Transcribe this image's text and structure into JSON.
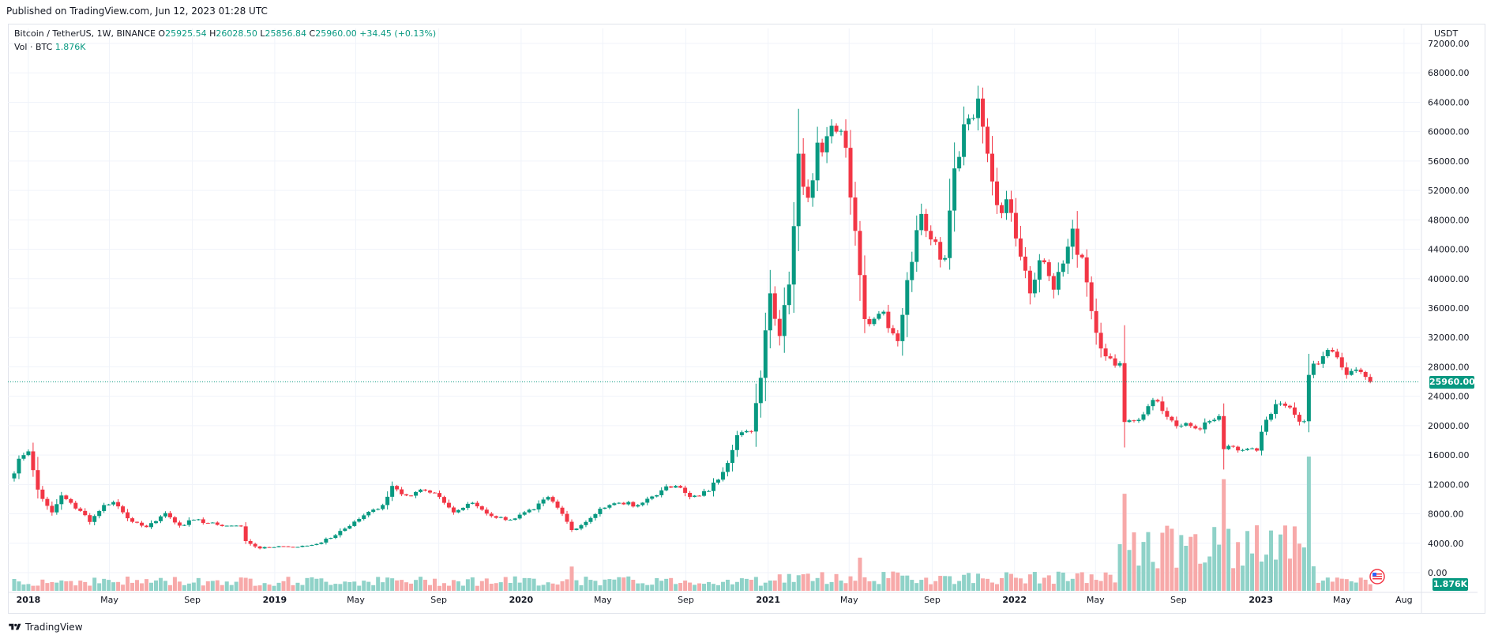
{
  "header": {
    "published": "Published on TradingView.com, Jun 12, 2023 01:28 UTC"
  },
  "legend": {
    "symbol": "Bitcoin / TetherUS, 1W, BINANCE",
    "open_label": "O",
    "open": "25925.54",
    "high_label": "H",
    "high": "26028.50",
    "low_label": "L",
    "low": "25856.84",
    "close_label": "C",
    "close": "25960.00",
    "change": "+34.45 (+0.13%)",
    "vol_label": "Vol · BTC",
    "vol_value": "1.876K"
  },
  "price_tag": "25960.00",
  "vol_tag": "1.876K",
  "footer": {
    "brand": "TradingView"
  },
  "colors": {
    "up": "#089981",
    "down": "#f23645",
    "vol_up": "#8fd2c8",
    "vol_down": "#f7a9a9",
    "grid": "#f0f3fa",
    "axis_text": "#131722"
  },
  "chart_data": {
    "type": "candlestick",
    "title": "Bitcoin / TetherUS, 1W, BINANCE",
    "ylabel": "USDT",
    "ylim": [
      0,
      72000
    ],
    "yticks": [
      "0.00",
      "4000.00",
      "8000.00",
      "12000.00",
      "16000.00",
      "20000.00",
      "24000.00",
      "28000.00",
      "32000.00",
      "36000.00",
      "40000.00",
      "44000.00",
      "48000.00",
      "52000.00",
      "56000.00",
      "60000.00",
      "64000.00",
      "68000.00",
      "72000.00"
    ],
    "x_labels": [
      "2018",
      "May",
      "Sep",
      "2019",
      "May",
      "Sep",
      "2020",
      "May",
      "Sep",
      "2021",
      "May",
      "Sep",
      "2022",
      "May",
      "Sep",
      "2023",
      "May",
      "Aug"
    ],
    "grid": true,
    "current_price": 25960,
    "close_anchors": [
      [
        "2017-12-11",
        13500
      ],
      [
        "2017-12-18",
        15500
      ],
      [
        "2018-01-01",
        16500
      ],
      [
        "2018-01-15",
        11300
      ],
      [
        "2018-02-05",
        8200
      ],
      [
        "2018-02-19",
        10500
      ],
      [
        "2018-03-05",
        9500
      ],
      [
        "2018-03-19",
        8400
      ],
      [
        "2018-04-02",
        6900
      ],
      [
        "2018-04-23",
        9200
      ],
      [
        "2018-05-07",
        9600
      ],
      [
        "2018-05-28",
        7400
      ],
      [
        "2018-06-25",
        6200
      ],
      [
        "2018-07-23",
        8100
      ],
      [
        "2018-08-13",
        6400
      ],
      [
        "2018-09-03",
        7200
      ],
      [
        "2018-10-08",
        6500
      ],
      [
        "2018-11-12",
        6300
      ],
      [
        "2018-11-19",
        4300
      ],
      [
        "2018-12-10",
        3300
      ],
      [
        "2019-01-07",
        3600
      ],
      [
        "2019-02-04",
        3500
      ],
      [
        "2019-03-04",
        3900
      ],
      [
        "2019-04-01",
        5100
      ],
      [
        "2019-05-13",
        7800
      ],
      [
        "2019-06-10",
        9200
      ],
      [
        "2019-06-24",
        11800
      ],
      [
        "2019-07-15",
        10500
      ],
      [
        "2019-08-05",
        11300
      ],
      [
        "2019-09-02",
        10300
      ],
      [
        "2019-09-23",
        8200
      ],
      [
        "2019-10-21",
        9500
      ],
      [
        "2019-11-18",
        7700
      ],
      [
        "2019-12-16",
        7200
      ],
      [
        "2020-01-20",
        8600
      ],
      [
        "2020-02-10",
        10300
      ],
      [
        "2020-03-02",
        8000
      ],
      [
        "2020-03-16",
        5800
      ],
      [
        "2020-04-06",
        6900
      ],
      [
        "2020-04-27",
        8700
      ],
      [
        "2020-05-25",
        9500
      ],
      [
        "2020-06-22",
        9200
      ],
      [
        "2020-07-27",
        11200
      ],
      [
        "2020-08-17",
        11800
      ],
      [
        "2020-09-07",
        10300
      ],
      [
        "2020-10-05",
        11100
      ],
      [
        "2020-10-26",
        13700
      ],
      [
        "2020-11-16",
        18700
      ],
      [
        "2020-12-07",
        19200
      ],
      [
        "2020-12-21",
        26500
      ],
      [
        "2021-01-04",
        38000
      ],
      [
        "2021-01-18",
        32200
      ],
      [
        "2021-02-01",
        39200
      ],
      [
        "2021-02-15",
        57000
      ],
      [
        "2021-03-01",
        51000
      ],
      [
        "2021-03-15",
        58500
      ],
      [
        "2021-04-12",
        60000
      ],
      [
        "2021-04-26",
        57800
      ],
      [
        "2021-05-10",
        46500
      ],
      [
        "2021-05-24",
        34500
      ],
      [
        "2021-06-21",
        35500
      ],
      [
        "2021-07-12",
        31500
      ],
      [
        "2021-07-26",
        39800
      ],
      [
        "2021-08-16",
        48800
      ],
      [
        "2021-09-06",
        45000
      ],
      [
        "2021-09-20",
        42800
      ],
      [
        "2021-10-04",
        55000
      ],
      [
        "2021-10-18",
        61000
      ],
      [
        "2021-11-08",
        64500
      ],
      [
        "2021-11-22",
        57000
      ],
      [
        "2021-12-06",
        50000
      ],
      [
        "2021-12-20",
        50800
      ],
      [
        "2022-01-10",
        43000
      ],
      [
        "2022-01-24",
        38000
      ],
      [
        "2022-02-07",
        42500
      ],
      [
        "2022-02-28",
        38500
      ],
      [
        "2022-03-28",
        46800
      ],
      [
        "2022-04-18",
        39500
      ],
      [
        "2022-05-09",
        30500
      ],
      [
        "2022-06-06",
        28500
      ],
      [
        "2022-06-13",
        20500
      ],
      [
        "2022-07-04",
        20800
      ],
      [
        "2022-07-25",
        23500
      ],
      [
        "2022-08-15",
        21200
      ],
      [
        "2022-09-05",
        20000
      ],
      [
        "2022-10-03",
        19500
      ],
      [
        "2022-10-31",
        21300
      ],
      [
        "2022-11-07",
        16800
      ],
      [
        "2022-12-26",
        16600
      ],
      [
        "2023-01-09",
        20800
      ],
      [
        "2023-01-30",
        23000
      ],
      [
        "2023-03-06",
        20600
      ],
      [
        "2023-03-13",
        26900
      ],
      [
        "2023-03-27",
        28400
      ],
      [
        "2023-04-10",
        30300
      ],
      [
        "2023-04-24",
        29300
      ],
      [
        "2023-05-08",
        26900
      ],
      [
        "2023-05-29",
        27300
      ],
      [
        "2023-06-12",
        25960
      ]
    ],
    "volume_peaks_k_btc": {
      "2020-03-16": 3000,
      "2021-05-17": 4100,
      "2022-06-13": 12000,
      "2022-11-07": 13800,
      "2023-03-13": 16600
    }
  }
}
